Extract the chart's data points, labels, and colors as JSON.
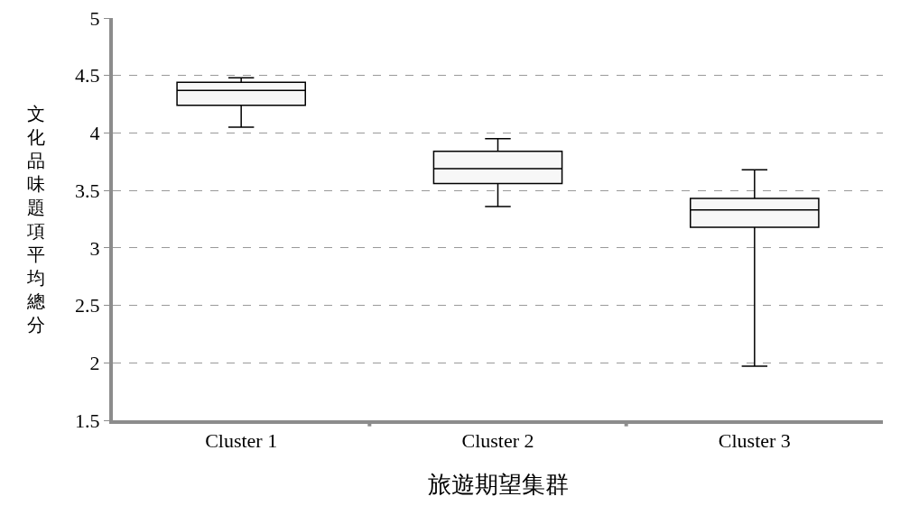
{
  "chart_data": {
    "type": "box",
    "xlabel": "旅遊期望集群",
    "ylabel": "文化品味題項平均總分",
    "categories": [
      "Cluster 1",
      "Cluster 2",
      "Cluster 3"
    ],
    "boxes": [
      {
        "low": 4.05,
        "q1": 4.24,
        "median": 4.37,
        "q3": 4.44,
        "high": 4.48
      },
      {
        "low": 3.36,
        "q1": 3.56,
        "median": 3.69,
        "q3": 3.84,
        "high": 3.95
      },
      {
        "low": 1.97,
        "q1": 3.18,
        "median": 3.33,
        "q3": 3.43,
        "high": 3.68
      }
    ],
    "color": "#000000",
    "ylim": [
      1.5,
      5
    ],
    "yticks": [
      1.5,
      2,
      2.5,
      3,
      3.5,
      4,
      4.5,
      5
    ],
    "grid": "y"
  }
}
